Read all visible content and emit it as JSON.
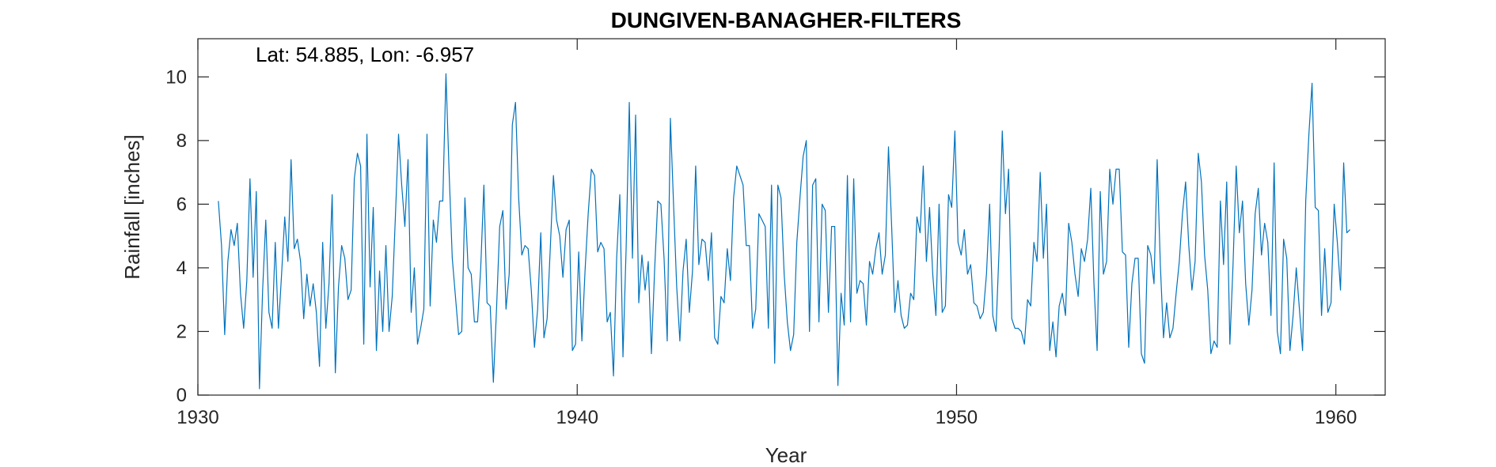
{
  "chart_data": {
    "type": "line",
    "title": "DUNGIVEN-BANAGHER-FILTERS",
    "annotation": "Lat: 54.885, Lon: -6.957",
    "xlabel": "Year",
    "ylabel": "Rainfall [inches]",
    "xlim": [
      1930,
      1961.3
    ],
    "ylim": [
      0,
      11.2
    ],
    "xticks": [
      1930,
      1940,
      1950,
      1960
    ],
    "yticks": [
      0,
      2,
      4,
      6,
      8,
      10
    ],
    "grid": false,
    "line_color": "#0072BD",
    "series": [
      {
        "x_start": 1930.54,
        "x_step": 0.08333,
        "values": [
          6.1,
          4.7,
          1.9,
          4.2,
          5.2,
          4.7,
          5.4,
          3.2,
          2.1,
          3.6,
          6.8,
          3.7,
          6.4,
          0.2,
          3.3,
          5.5,
          2.6,
          2.1,
          4.8,
          2.1,
          3.8,
          5.6,
          4.2,
          7.4,
          4.6,
          4.9,
          4.2,
          2.4,
          3.8,
          2.8,
          3.5,
          2.6,
          0.9,
          4.8,
          2.1,
          3.5,
          6.3,
          0.7,
          3.4,
          4.7,
          4.3,
          3.0,
          3.3,
          6.8,
          7.6,
          7.2,
          1.6,
          8.2,
          3.4,
          5.9,
          1.4,
          3.9,
          2.0,
          4.7,
          2.0,
          3.1,
          5.6,
          8.2,
          6.6,
          5.3,
          7.4,
          2.6,
          4.0,
          1.6,
          2.1,
          2.7,
          8.2,
          2.8,
          5.5,
          4.8,
          6.1,
          6.1,
          10.1,
          7.0,
          4.3,
          3.1,
          1.9,
          2.0,
          6.2,
          4.0,
          3.8,
          2.3,
          2.3,
          4.0,
          6.6,
          2.9,
          2.8,
          0.4,
          2.7,
          5.3,
          5.8,
          2.7,
          3.8,
          8.5,
          9.2,
          6.2,
          4.4,
          4.7,
          4.6,
          3.3,
          1.5,
          2.7,
          5.1,
          1.8,
          2.4,
          4.6,
          6.9,
          5.5,
          5.0,
          3.7,
          5.2,
          5.5,
          1.4,
          1.6,
          4.5,
          1.7,
          3.9,
          5.7,
          7.1,
          6.9,
          4.5,
          4.8,
          4.6,
          2.3,
          2.6,
          0.6,
          4.3,
          6.3,
          1.2,
          4.6,
          9.2,
          4.3,
          8.8,
          2.9,
          4.4,
          3.3,
          4.2,
          1.3,
          3.9,
          6.1,
          6.0,
          4.3,
          1.7,
          8.7,
          6.0,
          3.4,
          1.7,
          3.9,
          4.9,
          2.6,
          3.9,
          7.2,
          4.1,
          4.9,
          4.8,
          3.6,
          5.1,
          1.8,
          1.6,
          3.1,
          2.9,
          4.6,
          3.6,
          6.2,
          7.2,
          6.9,
          6.6,
          4.7,
          4.7,
          2.1,
          2.7,
          5.7,
          5.5,
          5.3,
          2.1,
          6.6,
          1.0,
          6.6,
          6.2,
          3.8,
          2.3,
          1.4,
          1.9,
          4.8,
          6.2,
          7.5,
          8.0,
          2.0,
          6.6,
          6.8,
          2.3,
          6.0,
          5.8,
          2.6,
          5.3,
          5.3,
          0.3,
          3.2,
          2.2,
          6.9,
          2.3,
          6.8,
          3.2,
          3.6,
          3.5,
          2.2,
          4.2,
          3.8,
          4.6,
          5.1,
          3.8,
          4.4,
          7.8,
          5.3,
          2.6,
          3.6,
          2.5,
          2.1,
          2.2,
          3.2,
          3.0,
          5.6,
          5.1,
          7.2,
          4.2,
          5.9,
          3.8,
          2.5,
          6.0,
          2.6,
          2.8,
          6.3,
          5.9,
          8.3,
          4.8,
          4.4,
          5.2,
          3.8,
          4.1,
          2.9,
          2.8,
          2.4,
          2.6,
          3.8,
          6.0,
          2.5,
          2.0,
          4.6,
          8.3,
          5.7,
          7.1,
          2.4,
          2.1,
          2.1,
          2.0,
          1.6,
          3.0,
          2.8,
          4.8,
          4.2,
          7.0,
          4.3,
          6.0,
          1.4,
          2.3,
          1.2,
          2.8,
          3.2,
          2.5,
          5.4,
          4.8,
          3.8,
          3.1,
          4.6,
          4.2,
          4.9,
          6.5,
          3.5,
          1.4,
          6.4,
          3.8,
          4.2,
          7.1,
          6.0,
          7.1,
          7.1,
          4.5,
          4.4,
          1.5,
          3.5,
          4.3,
          4.3,
          1.3,
          1.0,
          4.7,
          4.4,
          3.5,
          7.4,
          4.1,
          1.8,
          2.9,
          1.8,
          2.1,
          3.2,
          4.2,
          5.7,
          6.7,
          4.7,
          3.3,
          4.2,
          7.6,
          6.7,
          4.4,
          3.3,
          1.3,
          1.7,
          1.5,
          6.1,
          4.1,
          6.7,
          1.6,
          4.1,
          7.2,
          5.1,
          6.1,
          3.5,
          2.2,
          3.3,
          5.7,
          6.5,
          4.4,
          5.4,
          4.8,
          2.5,
          7.3,
          2.0,
          1.3,
          4.9,
          4.3,
          1.4,
          2.5,
          4.0,
          2.7,
          1.4,
          6.1,
          8.2,
          9.8,
          5.9,
          5.8,
          2.5,
          4.6,
          2.6,
          2.9,
          6.0,
          4.8,
          3.3,
          7.3,
          5.1,
          5.2
        ]
      }
    ]
  }
}
